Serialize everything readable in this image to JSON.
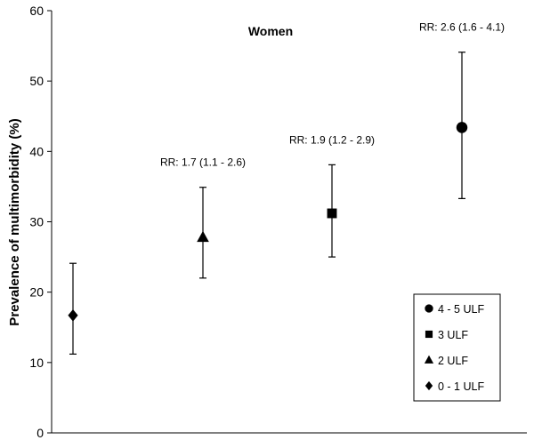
{
  "chart_data": {
    "type": "scatter",
    "title": "Women",
    "xlabel": "",
    "ylabel": "Prevalence of multimorbidity (%)",
    "ylim": [
      0,
      60
    ],
    "yticks": [
      0,
      10,
      20,
      30,
      40,
      50,
      60
    ],
    "grid": false,
    "legend_position": "bottom-right",
    "series": [
      {
        "name": "0 - 1 ULF",
        "marker": "diamond",
        "x": 1,
        "value": 16.7,
        "ci": [
          11.2,
          24.1
        ],
        "annotation": ""
      },
      {
        "name": "2 ULF",
        "marker": "triangle",
        "x": 2,
        "value": 27.8,
        "ci": [
          22.0,
          34.9
        ],
        "annotation": "RR: 1.7 (1.1 - 2.6)"
      },
      {
        "name": "3 ULF",
        "marker": "square",
        "x": 3,
        "value": 31.2,
        "ci": [
          25.0,
          38.1
        ],
        "annotation": "RR: 1.9 (1.2 - 2.9)"
      },
      {
        "name": "4 - 5 ULF",
        "marker": "circle",
        "x": 4,
        "value": 43.4,
        "ci": [
          33.3,
          54.1
        ],
        "annotation": "RR: 2.6 (1.6 - 4.1)"
      }
    ],
    "legend_order": [
      "4 - 5 ULF",
      "3 ULF",
      "2 ULF",
      "0 - 1 ULF"
    ],
    "colors": {
      "marker": "#000000",
      "axis": "#000000",
      "background": "#ffffff"
    }
  }
}
